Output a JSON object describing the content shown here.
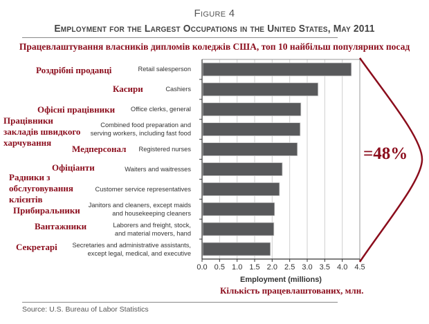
{
  "figure_label": "Figure 4",
  "title": "Employment for the Largest Occupations in the United States, May 2011",
  "ua_subtitle": "Працевлаштування власників дипломів коледжів США, топ 10 найбільш популярних посад",
  "annotation": {
    "bracket_label": "=48%",
    "color": "#8b0d1c"
  },
  "source": "Source: U.S. Bureau of Labor Statistics",
  "chart_data": {
    "type": "bar",
    "orientation": "horizontal",
    "title": "Employment for the Largest Occupations in the United States, May 2011",
    "xlabel": "Employment (millions)",
    "xlabel_ua": "Кількість працевлаштованих, млн.",
    "ylabel": "",
    "xlim": [
      0,
      4.5
    ],
    "xticks": [
      "0.0",
      "0.5",
      "1.0",
      "1.5",
      "2.0",
      "2.5",
      "3.0",
      "3.5",
      "4.0",
      "4.5"
    ],
    "grid": true,
    "bar_color": "#58595b",
    "categories": [
      "Retail salesperson",
      "Cashiers",
      "Office clerks, general",
      "Combined food preparation and serving workers, including fast food",
      "Registered nurses",
      "Waiters and waitresses",
      "Customer service representatives",
      "Janitors and cleaners, except maids and housekeeping cleaners",
      "Laborers and freight, stock, and material movers, hand",
      "Secretaries and administrative assistants, except legal, medical, and executive"
    ],
    "category_lines": [
      [
        "Retail salesperson"
      ],
      [
        "Cashiers"
      ],
      [
        "Office clerks, general"
      ],
      [
        "Combined food preparation and",
        "serving workers, including fast food"
      ],
      [
        "Registered nurses"
      ],
      [
        "Waiters and waitresses"
      ],
      [
        "Customer service representatives"
      ],
      [
        "Janitors and cleaners, except maids",
        "and housekeeping cleaners"
      ],
      [
        "Laborers and freight, stock,",
        "and material movers, hand"
      ],
      [
        "Secretaries and administrative assistants,",
        "except legal, medical, and executive"
      ]
    ],
    "categories_ua": [
      "Роздрібні продавці",
      "Касири",
      "Офісні працівники",
      "Працівники закладів швидкого харчування",
      "Медперсонал",
      "Офіціанти",
      "Радники з обслуговування клієнтів",
      "Прибиральники",
      "Вантажники",
      "Секретарі"
    ],
    "categories_ua_lines": [
      [
        "Роздрібні продавці"
      ],
      [
        "Касири"
      ],
      [
        "Офісні працівники"
      ],
      [
        "Працівники",
        "закладів швидкого",
        "харчування"
      ],
      [
        "Медперсонал"
      ],
      [
        "Офіціанти"
      ],
      [
        "Радники з",
        "обслуговування",
        "клієнтів"
      ],
      [
        "Прибиральники"
      ],
      [
        "Вантажники"
      ],
      [
        "Секретарі"
      ]
    ],
    "values": [
      4.26,
      3.31,
      2.82,
      2.8,
      2.72,
      2.29,
      2.21,
      2.07,
      2.05,
      1.95
    ]
  }
}
